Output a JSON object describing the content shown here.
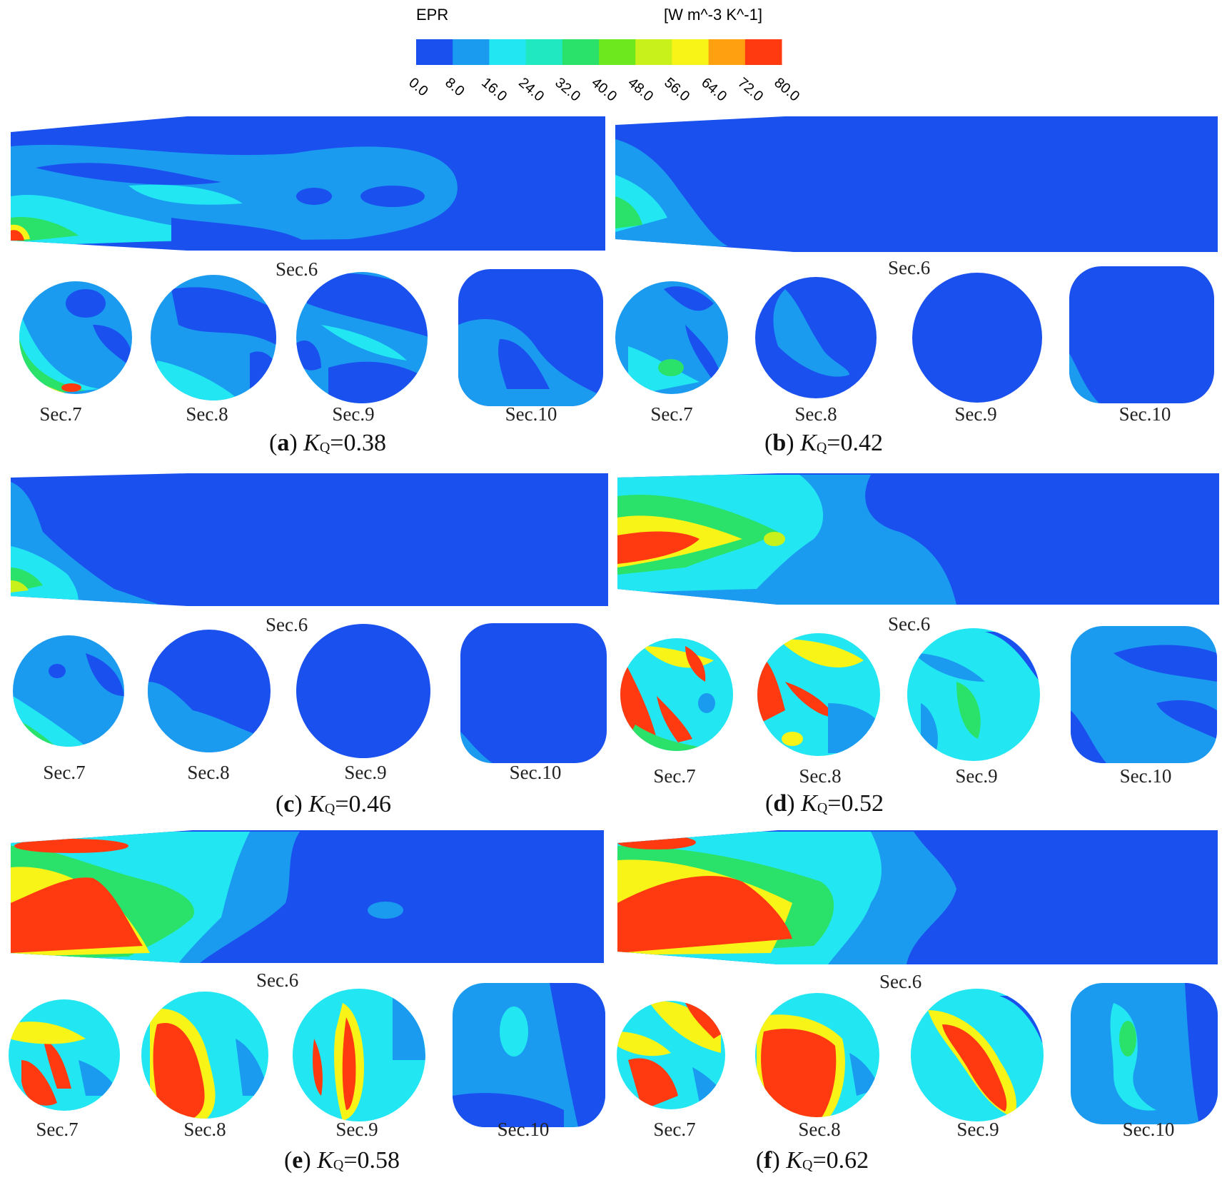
{
  "legend": {
    "variable": "EPR",
    "unit": "[W m^-3 K^-1]",
    "ticks": [
      "0.0",
      "8.0",
      "16.0",
      "24.0",
      "32.0",
      "40.0",
      "48.0",
      "56.0",
      "64.0",
      "72.0",
      "80.0"
    ],
    "colors": [
      "#1a50ee",
      "#1a9bf0",
      "#22e6f2",
      "#20e8c0",
      "#2ae26a",
      "#6ee81e",
      "#c8f01a",
      "#f8f418",
      "#ffa010",
      "#ff3a10"
    ]
  },
  "panels": [
    {
      "letter": "a",
      "kq_prefix": "K",
      "kq_sub": "Q",
      "kq_value": "=0.38",
      "sec6": "Sec.6",
      "sections": [
        "Sec.7",
        "Sec.8",
        "Sec.9",
        "Sec.10"
      ]
    },
    {
      "letter": "b",
      "kq_prefix": "K",
      "kq_sub": "Q",
      "kq_value": "=0.42",
      "sec6": "Sec.6",
      "sections": [
        "Sec.7",
        "Sec.8",
        "Sec.9",
        "Sec.10"
      ]
    },
    {
      "letter": "c",
      "kq_prefix": "K",
      "kq_sub": "Q",
      "kq_value": "=0.46",
      "sec6": "Sec.6",
      "sections": [
        "Sec.7",
        "Sec.8",
        "Sec.9",
        "Sec.10"
      ]
    },
    {
      "letter": "d",
      "kq_prefix": "K",
      "kq_sub": "Q",
      "kq_value": "=0.52",
      "sec6": "Sec.6",
      "sections": [
        "Sec.7",
        "Sec.8",
        "Sec.9",
        "Sec.10"
      ]
    },
    {
      "letter": "e",
      "kq_prefix": "K",
      "kq_sub": "Q",
      "kq_value": "=0.58",
      "sec6": "Sec.6",
      "sections": [
        "Sec.7",
        "Sec.8",
        "Sec.9",
        "Sec.10"
      ]
    },
    {
      "letter": "f",
      "kq_prefix": "K",
      "kq_sub": "Q",
      "kq_value": "=0.62",
      "sec6": "Sec.6",
      "sections": [
        "Sec.7",
        "Sec.8",
        "Sec.9",
        "Sec.10"
      ]
    }
  ]
}
